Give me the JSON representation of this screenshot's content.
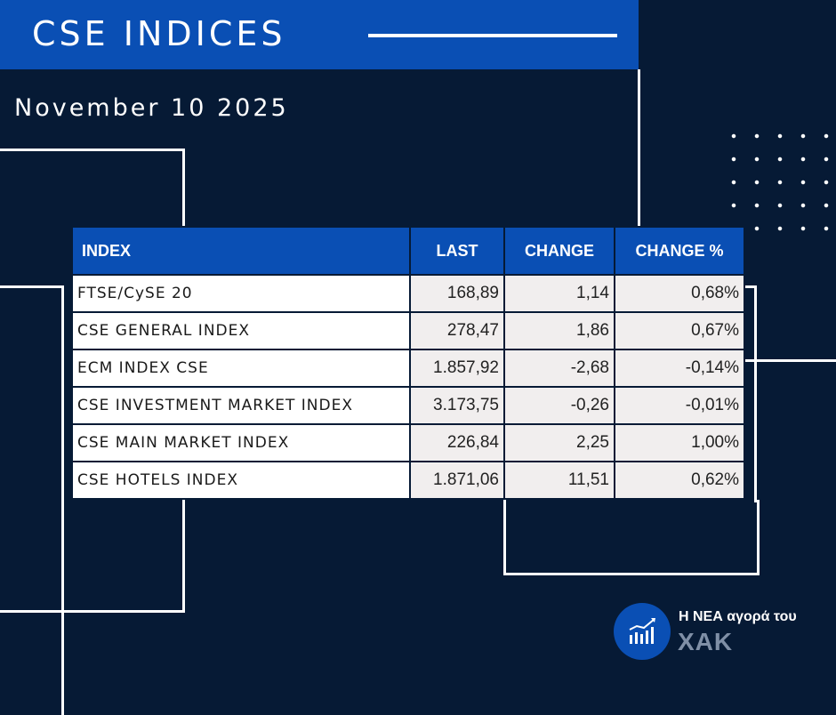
{
  "header": {
    "title": "CSE INDICES"
  },
  "date": "November 10 2025",
  "table": {
    "headers": {
      "index": "INDEX",
      "last": "LAST",
      "change": "CHANGE",
      "change_pct": "CHANGE %"
    },
    "rows": [
      {
        "name": "FTSE/CySE 20",
        "last": "168,89",
        "change": "1,14",
        "change_pct": "0,68%",
        "direction": "up"
      },
      {
        "name": "CSE GENERAL INDEX",
        "last": "278,47",
        "change": "1,86",
        "change_pct": "0,67%",
        "direction": "up"
      },
      {
        "name": "ECM INDEX CSE",
        "last": "1.857,92",
        "change": "-2,68",
        "change_pct": "-0,14%",
        "direction": "down"
      },
      {
        "name": "CSE INVESTMENT MARKET INDEX",
        "last": "3.173,75",
        "change": "-0,26",
        "change_pct": "-0,01%",
        "direction": "down"
      },
      {
        "name": "CSE MAIN MARKET INDEX",
        "last": "226,84",
        "change": "2,25",
        "change_pct": "1,00%",
        "direction": "up"
      },
      {
        "name": "CSE HOTELS INDEX",
        "last": "1.871,06",
        "change": "11,51",
        "change_pct": "0,62%",
        "direction": "up"
      }
    ]
  },
  "logo": {
    "tagline": "Η ΝΕΑ αγορά του",
    "name": "ΧΑΚ",
    "icon": "bar-chart-icon"
  },
  "colors": {
    "background": "#061a35",
    "accent": "#0a4fb4",
    "positive": "#4f8e2a",
    "negative": "#e10f0f"
  }
}
